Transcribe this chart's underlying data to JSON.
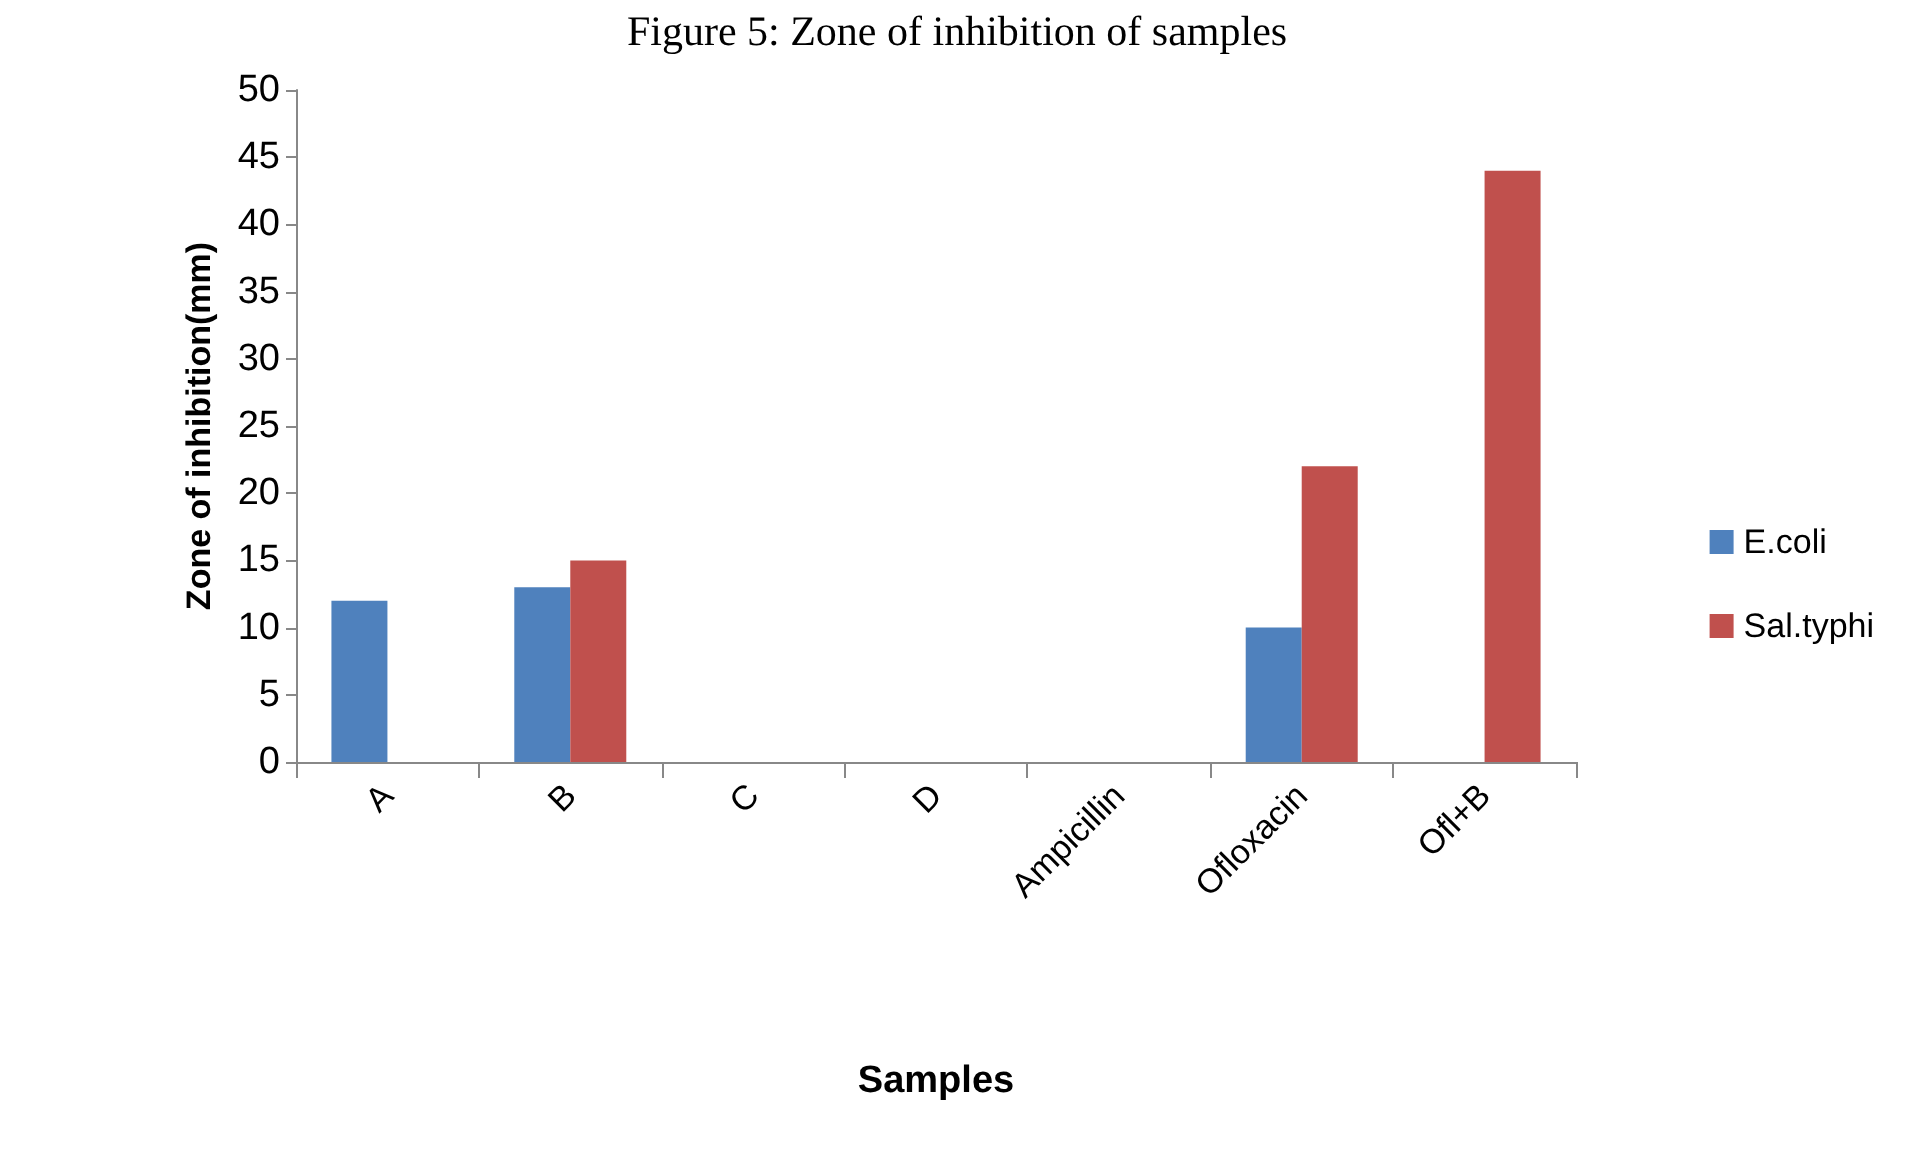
{
  "chart_data": {
    "type": "bar",
    "title": "Figure 5: Zone of inhibition of samples",
    "xlabel": "Samples",
    "ylabel": "Zone of inhibition(mm)",
    "categories": [
      "A",
      "B",
      "C",
      "D",
      "Ampicillin",
      "Ofloxacin",
      "Ofl+B"
    ],
    "series": [
      {
        "name": "E.coli",
        "color": "#4f81bd",
        "values": [
          12,
          13,
          0,
          0,
          0,
          10,
          0
        ]
      },
      {
        "name": "Sal.typhi",
        "color": "#c0504d",
        "values": [
          0,
          15,
          0,
          0,
          0,
          22,
          44
        ]
      }
    ],
    "ylim": [
      0,
      50
    ],
    "yticks": [
      0,
      5,
      10,
      15,
      20,
      25,
      30,
      35,
      40,
      45,
      50
    ],
    "grid": false,
    "legend": "right"
  }
}
